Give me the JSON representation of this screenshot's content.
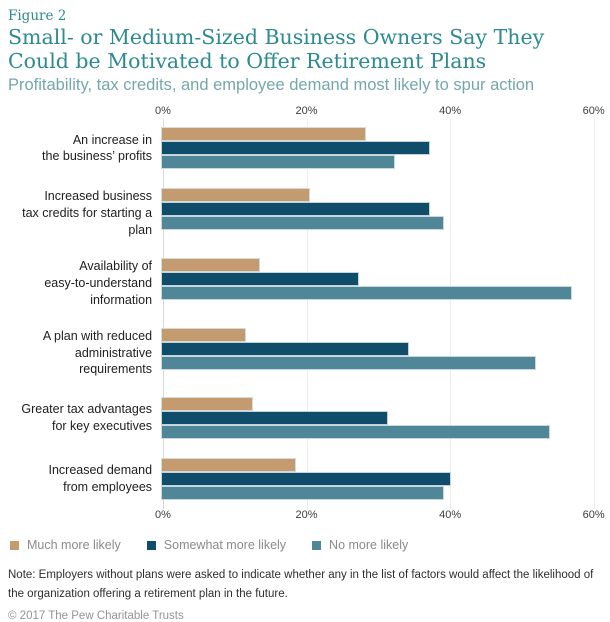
{
  "figure_label": "Figure 2",
  "title": "Small- or Medium-Sized Business Owners Say They Could be Motivated to Offer Retirement Plans",
  "subtitle": "Profitability, tax credits, and employee demand most likely to spur action",
  "colors": {
    "title_teal": "#2c8a90",
    "subtitle_teal": "#74a7ac",
    "much_more_likely": "#c49b6e",
    "somewhat_more_likely": "#0f4d6b",
    "no_more_likely": "#4f8698"
  },
  "chart_data": {
    "type": "bar",
    "orientation": "horizontal",
    "categories": [
      [
        "An increase in",
        "the business’ profits"
      ],
      [
        "Increased business",
        "tax credits for starting a plan"
      ],
      [
        "Availability of",
        "easy-to-understand",
        "information"
      ],
      [
        "A plan with reduced",
        "administrative requirements"
      ],
      [
        "Greater tax advantages",
        "for key executives"
      ],
      [
        "Increased demand",
        "from employees"
      ]
    ],
    "series": [
      {
        "name": "Much more likely",
        "color": "#c49b6e",
        "values": [
          29,
          21,
          14,
          12,
          13,
          19
        ]
      },
      {
        "name": "Somewhat more likely",
        "color": "#0f4d6b",
        "values": [
          38,
          38,
          28,
          35,
          32,
          41
        ]
      },
      {
        "name": "No more likely",
        "color": "#4f8698",
        "values": [
          33,
          40,
          58,
          53,
          55,
          40
        ]
      }
    ],
    "x_ticks": [
      {
        "value": 0,
        "label": "0%"
      },
      {
        "value": 20,
        "label": "20%"
      },
      {
        "value": 40,
        "label": "40%"
      },
      {
        "value": 60,
        "label": "60%"
      }
    ],
    "xlim": [
      0,
      62
    ],
    "grid": "vertical-light",
    "legend_position": "bottom-left"
  },
  "note": "Note: Employers without plans were asked to indicate whether any in the list of factors would affect the likelihood of the organization offering a retirement plan in the future.",
  "copyright": "© 2017 The Pew Charitable Trusts"
}
